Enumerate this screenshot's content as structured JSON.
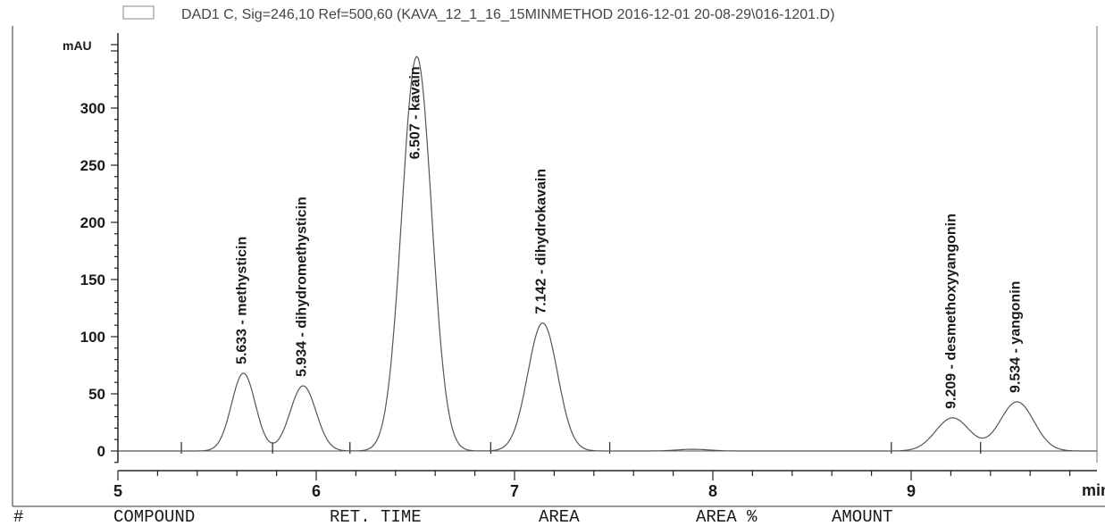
{
  "chart_data": {
    "type": "line",
    "signal": "DAD1 C, Sig=246,10 Ref=500,60 (KAVA_12_1_16_15MINMETHOD 2016-12-01 20-08-29\\016-1201.D)",
    "xlabel": "min",
    "ylabel": "mAU",
    "xlim": [
      5,
      10.0
    ],
    "ylim": [
      -20,
      355
    ],
    "x_ticks": [
      5,
      6,
      7,
      8,
      9
    ],
    "y_ticks": [
      0,
      50,
      100,
      150,
      200,
      250,
      300
    ],
    "grid": false,
    "peaks": [
      {
        "time": 5.633,
        "name": "methysticin",
        "height": 68,
        "width": 0.06,
        "label": "5.633 - methysticin"
      },
      {
        "time": 5.934,
        "name": "dihydromethysticin",
        "height": 57,
        "width": 0.065,
        "label": "5.934 - dihydromethysticin"
      },
      {
        "time": 6.507,
        "name": "kavain",
        "height": 345,
        "width": 0.075,
        "label": "6.507 - kavain"
      },
      {
        "time": 7.142,
        "name": "dihydrokavain",
        "height": 112,
        "width": 0.075,
        "label": "7.142 - dihydrokavain"
      },
      {
        "time": 7.9,
        "name": "",
        "height": 1.5,
        "width": 0.08,
        "label": ""
      },
      {
        "time": 9.209,
        "name": "desmethoxyyangonin",
        "height": 29,
        "width": 0.085,
        "label": "9.209 - desmethoxyyangonin"
      },
      {
        "time": 9.534,
        "name": "yangonin",
        "height": 43,
        "width": 0.085,
        "label": "9.534 - yangonin"
      }
    ],
    "integration_marks": [
      5.32,
      5.78,
      6.17,
      6.88,
      7.48,
      8.9,
      9.35
    ]
  },
  "table_header": {
    "hash": "#",
    "compound": "COMPOUND",
    "ret_time": "RET. TIME",
    "area": "AREA",
    "area_pct": "AREA %",
    "amount": "AMOUNT"
  }
}
